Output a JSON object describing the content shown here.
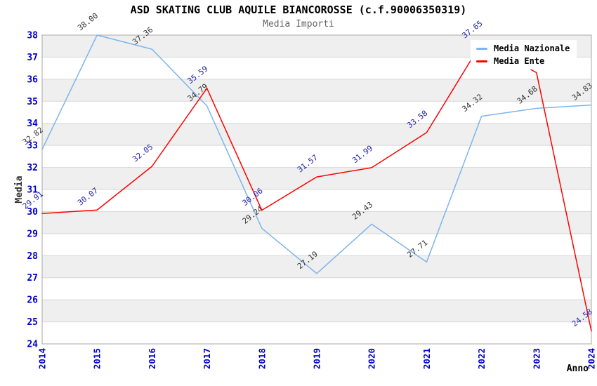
{
  "title": "ASD SKATING CLUB AQUILE BIANCOROSSE (c.f.90006350319)",
  "subtitle": "Media Importi",
  "colors": {
    "band": "#efefef",
    "grid_line": "#d7d7d7",
    "spine": "#aaaaaa",
    "tick_label": "#0000cc",
    "national_line": "#7cb5ec",
    "national_label": "#333333",
    "ente_line": "#ff0000",
    "ente_label": "#2424aa"
  },
  "chart_data": {
    "type": "line",
    "x": [
      2014,
      2015,
      2016,
      2017,
      2018,
      2019,
      2020,
      2021,
      2022,
      2023,
      2024
    ],
    "xlabel": "Anno",
    "ylabel": "Media",
    "ylim": [
      24,
      38
    ],
    "ytick_step": 1,
    "grid": "horizontal-alternating-bands",
    "legend_position": "top-right",
    "series": [
      {
        "name": "Media Nazionale",
        "color": "#7cb5ec",
        "label_color": "#333333",
        "values": [
          32.82,
          38.0,
          37.36,
          34.79,
          29.24,
          27.19,
          29.43,
          27.71,
          34.32,
          34.68,
          34.83
        ]
      },
      {
        "name": "Media Ente",
        "color": "#ff0000",
        "label_color": "#2424aa",
        "values": [
          29.91,
          30.07,
          32.05,
          35.59,
          30.06,
          31.57,
          31.99,
          33.58,
          37.65,
          36.3,
          24.58
        ]
      }
    ]
  }
}
